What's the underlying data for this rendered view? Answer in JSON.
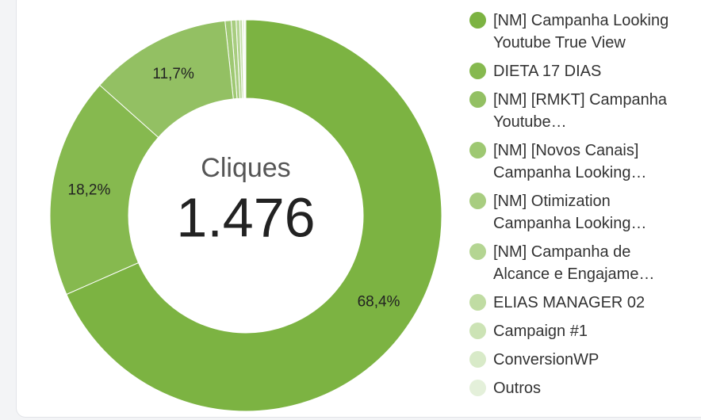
{
  "chart_data": {
    "type": "donut",
    "center_title": "Cliques",
    "center_value": "1.476",
    "categories": [
      "[NM] Campanha Looking Youtube True View",
      "DIETA 17 DIAS",
      "[NM] [RMKT] Campanha Youtube…",
      "[NM] [Novos Canais] Campanha Looking…",
      "[NM] Otimization Campanha Looking…",
      "[NM] Campanha de Alcance e Engajame…",
      "ELIAS MANAGER 02",
      "Campaign #1",
      "ConversionWP",
      "Outros"
    ],
    "values": [
      68.4,
      18.2,
      11.7,
      0.5,
      0.4,
      0.3,
      0.2,
      0.1,
      0.1,
      0.1
    ],
    "value_labels": [
      "68,4%",
      "18,2%",
      "11,7%",
      null,
      null,
      null,
      null,
      null,
      null,
      null
    ],
    "colors": [
      "#7cb342",
      "#86b94f",
      "#93c063",
      "#9ec872",
      "#a8cd80",
      "#b4d592",
      "#c0dca3",
      "#cce3b5",
      "#d8eac8",
      "#e4f0da"
    ],
    "legend": "right"
  }
}
